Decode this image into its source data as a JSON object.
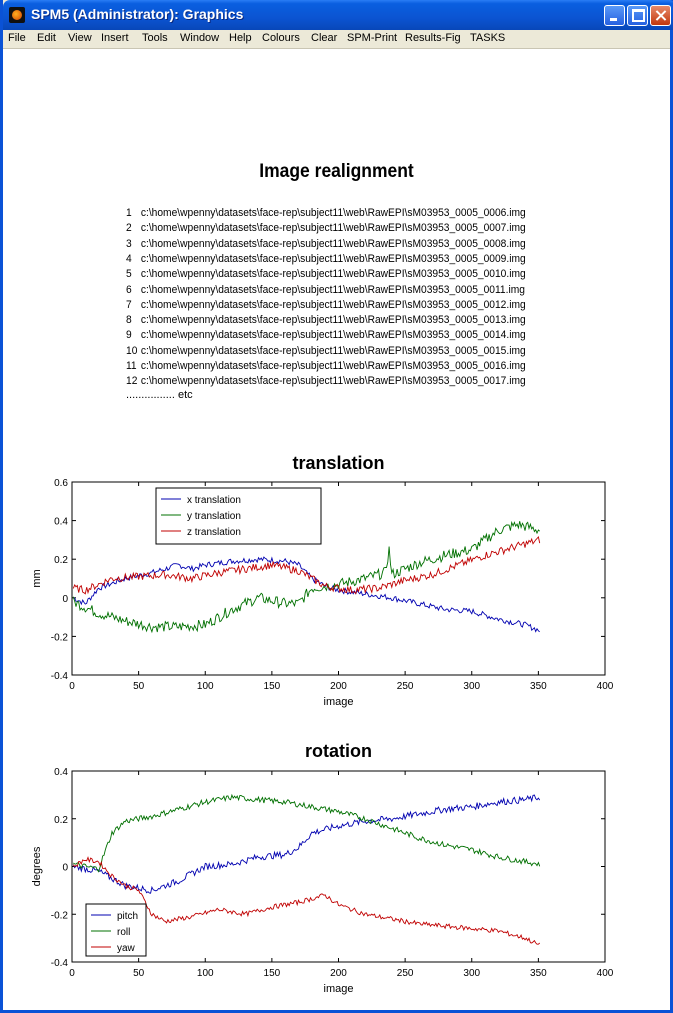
{
  "window": {
    "title": "SPM5 (Administrator): Graphics",
    "menu": [
      "File",
      "Edit",
      "View",
      "Insert",
      "Tools",
      "Window",
      "Help",
      "Colours",
      "Clear",
      "SPM-Print",
      "Results-Fig",
      "TASKS"
    ]
  },
  "report": {
    "title": "Image realignment",
    "files": [
      {
        "idx": "1",
        "path": "c:\\home\\wpenny\\datasets\\face-rep\\subject11\\web\\RawEPI\\sM03953_0005_0006.img"
      },
      {
        "idx": "2",
        "path": "c:\\home\\wpenny\\datasets\\face-rep\\subject11\\web\\RawEPI\\sM03953_0005_0007.img"
      },
      {
        "idx": "3",
        "path": "c:\\home\\wpenny\\datasets\\face-rep\\subject11\\web\\RawEPI\\sM03953_0005_0008.img"
      },
      {
        "idx": "4",
        "path": "c:\\home\\wpenny\\datasets\\face-rep\\subject11\\web\\RawEPI\\sM03953_0005_0009.img"
      },
      {
        "idx": "5",
        "path": "c:\\home\\wpenny\\datasets\\face-rep\\subject11\\web\\RawEPI\\sM03953_0005_0010.img"
      },
      {
        "idx": "6",
        "path": "c:\\home\\wpenny\\datasets\\face-rep\\subject11\\web\\RawEPI\\sM03953_0005_0011.img"
      },
      {
        "idx": "7",
        "path": "c:\\home\\wpenny\\datasets\\face-rep\\subject11\\web\\RawEPI\\sM03953_0005_0012.img"
      },
      {
        "idx": "8",
        "path": "c:\\home\\wpenny\\datasets\\face-rep\\subject11\\web\\RawEPI\\sM03953_0005_0013.img"
      },
      {
        "idx": "9",
        "path": "c:\\home\\wpenny\\datasets\\face-rep\\subject11\\web\\RawEPI\\sM03953_0005_0014.img"
      },
      {
        "idx": "10",
        "path": "c:\\home\\wpenny\\datasets\\face-rep\\subject11\\web\\RawEPI\\sM03953_0005_0015.img"
      },
      {
        "idx": "11",
        "path": "c:\\home\\wpenny\\datasets\\face-rep\\subject11\\web\\RawEPI\\sM03953_0005_0016.img"
      },
      {
        "idx": "12",
        "path": "c:\\home\\wpenny\\datasets\\face-rep\\subject11\\web\\RawEPI\\sM03953_0005_0017.img"
      }
    ],
    "etc": "................ etc"
  },
  "chart_data": [
    {
      "type": "line",
      "title": "translation",
      "xlabel": "image",
      "ylabel": "mm",
      "xlim": [
        0,
        400
      ],
      "ylim": [
        -0.4,
        0.6
      ],
      "xticks": [
        0,
        50,
        100,
        150,
        200,
        250,
        300,
        350,
        400
      ],
      "yticks": [
        -0.4,
        -0.2,
        0,
        0.2,
        0.4,
        0.6
      ],
      "legend": "top-left",
      "series": [
        {
          "name": "x translation",
          "color": "#0000b0",
          "noise": 0.015,
          "points": [
            [
              1,
              0
            ],
            [
              10,
              -0.03
            ],
            [
              20,
              0.05
            ],
            [
              40,
              0.1
            ],
            [
              60,
              0.13
            ],
            [
              80,
              0.17
            ],
            [
              90,
              0.15
            ],
            [
              100,
              0.17
            ],
            [
              120,
              0.19
            ],
            [
              140,
              0.2
            ],
            [
              160,
              0.19
            ],
            [
              170,
              0.17
            ],
            [
              180,
              0.1
            ],
            [
              190,
              0.06
            ],
            [
              200,
              0.04
            ],
            [
              220,
              0.02
            ],
            [
              240,
              0
            ],
            [
              260,
              -0.03
            ],
            [
              280,
              -0.06
            ],
            [
              300,
              -0.07
            ],
            [
              320,
              -0.11
            ],
            [
              340,
              -0.14
            ],
            [
              351,
              -0.17
            ]
          ]
        },
        {
          "name": "y translation",
          "color": "#007000",
          "noise": 0.028,
          "points": [
            [
              1,
              -0.02
            ],
            [
              20,
              -0.08
            ],
            [
              40,
              -0.12
            ],
            [
              60,
              -0.15
            ],
            [
              80,
              -0.15
            ],
            [
              100,
              -0.14
            ],
            [
              120,
              -0.06
            ],
            [
              140,
              0
            ],
            [
              160,
              -0.03
            ],
            [
              170,
              -0.03
            ],
            [
              180,
              0.05
            ],
            [
              190,
              0.06
            ],
            [
              200,
              0.07
            ],
            [
              220,
              0.1
            ],
            [
              235,
              0.13
            ],
            [
              238,
              0.25
            ],
            [
              240,
              0.12
            ],
            [
              260,
              0.18
            ],
            [
              280,
              0.22
            ],
            [
              300,
              0.25
            ],
            [
              320,
              0.35
            ],
            [
              335,
              0.38
            ],
            [
              351,
              0.35
            ]
          ]
        },
        {
          "name": "z translation",
          "color": "#c00000",
          "noise": 0.02,
          "points": [
            [
              1,
              0.05
            ],
            [
              10,
              0.04
            ],
            [
              30,
              0.1
            ],
            [
              50,
              0.11
            ],
            [
              70,
              0.12
            ],
            [
              90,
              0.1
            ],
            [
              110,
              0.13
            ],
            [
              130,
              0.15
            ],
            [
              150,
              0.17
            ],
            [
              170,
              0.14
            ],
            [
              190,
              0.06
            ],
            [
              210,
              0.04
            ],
            [
              230,
              0.05
            ],
            [
              250,
              0.09
            ],
            [
              270,
              0.12
            ],
            [
              290,
              0.17
            ],
            [
              310,
              0.22
            ],
            [
              330,
              0.26
            ],
            [
              351,
              0.3
            ]
          ]
        }
      ]
    },
    {
      "type": "line",
      "title": "rotation",
      "xlabel": "image",
      "ylabel": "degrees",
      "xlim": [
        0,
        400
      ],
      "ylim": [
        -0.4,
        0.4
      ],
      "xticks": [
        0,
        50,
        100,
        150,
        200,
        250,
        300,
        350,
        400
      ],
      "yticks": [
        -0.4,
        -0.2,
        0,
        0.2,
        0.4
      ],
      "legend": "bottom-left",
      "series": [
        {
          "name": "pitch",
          "color": "#0000b0",
          "noise": 0.014,
          "points": [
            [
              1,
              0
            ],
            [
              20,
              -0.02
            ],
            [
              40,
              -0.08
            ],
            [
              60,
              -0.1
            ],
            [
              80,
              -0.06
            ],
            [
              100,
              0
            ],
            [
              120,
              0.01
            ],
            [
              140,
              0.04
            ],
            [
              160,
              0.05
            ],
            [
              170,
              0.08
            ],
            [
              180,
              0.14
            ],
            [
              200,
              0.17
            ],
            [
              220,
              0.19
            ],
            [
              240,
              0.2
            ],
            [
              260,
              0.22
            ],
            [
              280,
              0.24
            ],
            [
              300,
              0.25
            ],
            [
              320,
              0.27
            ],
            [
              340,
              0.28
            ],
            [
              351,
              0.29
            ]
          ]
        },
        {
          "name": "roll",
          "color": "#007000",
          "noise": 0.012,
          "points": [
            [
              1,
              0.01
            ],
            [
              10,
              0
            ],
            [
              20,
              -0.01
            ],
            [
              30,
              0.14
            ],
            [
              40,
              0.19
            ],
            [
              60,
              0.21
            ],
            [
              80,
              0.24
            ],
            [
              100,
              0.27
            ],
            [
              120,
              0.29
            ],
            [
              140,
              0.28
            ],
            [
              160,
              0.27
            ],
            [
              180,
              0.25
            ],
            [
              200,
              0.23
            ],
            [
              220,
              0.2
            ],
            [
              240,
              0.16
            ],
            [
              260,
              0.12
            ],
            [
              280,
              0.09
            ],
            [
              300,
              0.07
            ],
            [
              320,
              0.04
            ],
            [
              340,
              0.02
            ],
            [
              351,
              0.01
            ]
          ]
        },
        {
          "name": "yaw",
          "color": "#c00000",
          "noise": 0.01,
          "points": [
            [
              1,
              0
            ],
            [
              10,
              0.03
            ],
            [
              20,
              0.02
            ],
            [
              30,
              -0.04
            ],
            [
              40,
              -0.08
            ],
            [
              50,
              -0.1
            ],
            [
              60,
              -0.2
            ],
            [
              70,
              -0.23
            ],
            [
              90,
              -0.21
            ],
            [
              110,
              -0.18
            ],
            [
              130,
              -0.2
            ],
            [
              150,
              -0.17
            ],
            [
              170,
              -0.15
            ],
            [
              190,
              -0.12
            ],
            [
              200,
              -0.16
            ],
            [
              220,
              -0.2
            ],
            [
              240,
              -0.22
            ],
            [
              260,
              -0.24
            ],
            [
              280,
              -0.25
            ],
            [
              300,
              -0.26
            ],
            [
              320,
              -0.27
            ],
            [
              340,
              -0.3
            ],
            [
              351,
              -0.33
            ]
          ]
        }
      ]
    }
  ]
}
